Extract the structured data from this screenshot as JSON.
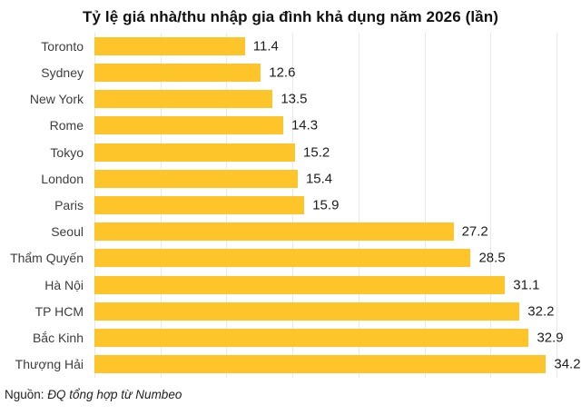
{
  "title": "Tỷ lệ giá nhà/thu nhập gia đình khả dụng năm 2026 (lần)",
  "source": {
    "prefix": "Nguồn: ",
    "text": "ĐQ tổng hợp từ Numbeo"
  },
  "colors": {
    "bar": "#fec52b",
    "gridline": "#e9e9e9",
    "title": "#111111",
    "label": "#3d3d3d",
    "value": "#1c1c1c"
  },
  "chart_data": {
    "type": "bar",
    "orientation": "horizontal",
    "title": "Tỷ lệ giá nhà/thu nhập gia đình khả dụng năm 2026 (lần)",
    "categories": [
      "Toronto",
      "Sydney",
      "New York",
      "Rome",
      "Tokyo",
      "London",
      "Paris",
      "Seoul",
      "Thẩm Quyến",
      "Hà Nội",
      "TP HCM",
      "Bắc Kinh",
      "Thượng Hải"
    ],
    "values": [
      11.4,
      12.6,
      13.5,
      14.3,
      15.2,
      15.4,
      15.9,
      27.2,
      28.5,
      31.1,
      32.2,
      32.9,
      34.2
    ],
    "value_labels": [
      "11.4",
      "12.6",
      "13.5",
      "14.3",
      "15.2",
      "15.4",
      "15.9",
      "27.2",
      "28.5",
      "31.1",
      "32.2",
      "32.9",
      "34.2"
    ],
    "xlabel": "",
    "ylabel": "",
    "xlim": [
      0,
      35
    ],
    "gridline_interval": 5,
    "grid": true,
    "legend": false
  }
}
